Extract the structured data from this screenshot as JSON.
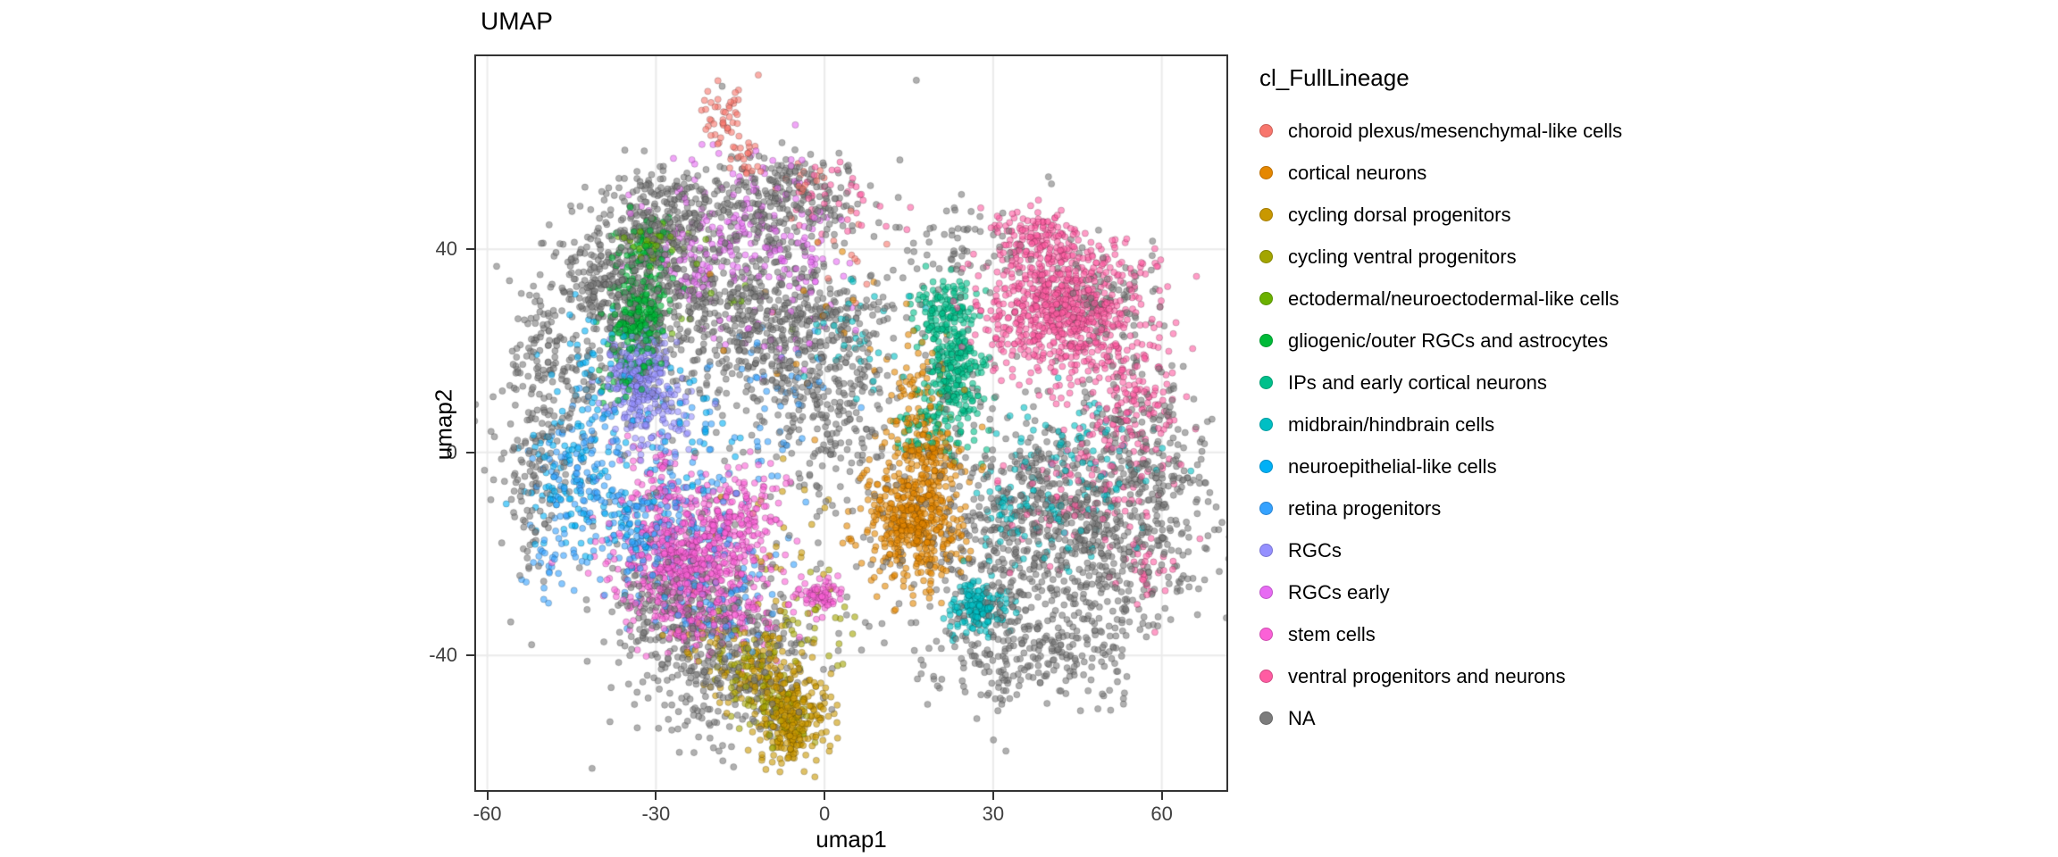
{
  "chart_data": {
    "type": "scatter",
    "title": "UMAP",
    "xlabel": "umap1",
    "ylabel": "umap2",
    "legend_title": "cl_FullLineage",
    "legend_position": "right",
    "xlim": [
      -62,
      71.5
    ],
    "ylim": [
      -66.5,
      78
    ],
    "x_ticks": [
      -60,
      -30,
      0,
      30,
      60
    ],
    "y_ticks": [
      40,
      0,
      -40
    ],
    "grid": "major",
    "grid_color": "#ebebeb",
    "point_radius": 3.6,
    "point_alpha": 0.6,
    "series": [
      {
        "name": "choroid plexus/mesenchymal-like cells",
        "color": "#F8766D",
        "clusters": [
          [
            -17.5,
            66,
            2.2,
            3.2,
            45
          ],
          [
            -14,
            58,
            2,
            2.2,
            22
          ],
          [
            -3,
            53,
            3,
            2.5,
            14
          ],
          [
            6,
            40,
            4,
            5,
            10
          ]
        ]
      },
      {
        "name": "cortical neurons",
        "color": "#E58700",
        "clusters": [
          [
            16,
            -13,
            4.2,
            6.5,
            520
          ],
          [
            18,
            1,
            3,
            3.5,
            110
          ],
          [
            17,
            13,
            3.5,
            5,
            55
          ],
          [
            0,
            25,
            10,
            10,
            20
          ]
        ]
      },
      {
        "name": "cycling dorsal progenitors",
        "color": "#C99800",
        "clusters": [
          [
            -5.5,
            -53,
            3,
            4,
            250
          ],
          [
            -11,
            -45,
            4,
            3.5,
            110
          ],
          [
            -16,
            -38,
            5,
            4,
            55
          ],
          [
            -8,
            -20,
            6,
            10,
            25
          ]
        ]
      },
      {
        "name": "cycling ventral progenitors",
        "color": "#A3A500",
        "clusters": [
          [
            -13,
            -43,
            4,
            4.5,
            85
          ],
          [
            -8,
            -51,
            3,
            3,
            55
          ],
          [
            -2,
            -33,
            5,
            5,
            30
          ]
        ]
      },
      {
        "name": "ectodermal/neuroectodermal-like cells",
        "color": "#6BB100",
        "clusters": [
          [
            -30,
            41,
            2.5,
            2.5,
            35
          ],
          [
            -22,
            32,
            6,
            5,
            18
          ]
        ]
      },
      {
        "name": "gliogenic/outer RGCs and astrocytes",
        "color": "#00BA38",
        "clusters": [
          [
            -33,
            27,
            2.4,
            4.5,
            230
          ],
          [
            -31.5,
            40,
            2.2,
            3,
            70
          ],
          [
            -35,
            16,
            3,
            3.5,
            45
          ]
        ]
      },
      {
        "name": "IPs and early cortical neurons",
        "color": "#00C08B",
        "clusters": [
          [
            23,
            17,
            2.8,
            7,
            290
          ],
          [
            21,
            29,
            2.6,
            3,
            85
          ],
          [
            18.5,
            5,
            3,
            3,
            55
          ]
        ]
      },
      {
        "name": "midbrain/hindbrain cells",
        "color": "#00BFC4",
        "clusters": [
          [
            27,
            -30.5,
            2.4,
            2.8,
            160
          ],
          [
            44,
            -4,
            8,
            7,
            110
          ],
          [
            34,
            -14,
            4,
            4,
            45
          ],
          [
            7,
            23,
            4,
            5,
            35
          ]
        ]
      },
      {
        "name": "neuroepithelial-like cells",
        "color": "#00B0F6",
        "clusters": [
          [
            -46,
            -4,
            4,
            7,
            80
          ],
          [
            -36,
            -14,
            5,
            5,
            55
          ],
          [
            -42,
            16,
            4,
            7,
            45
          ],
          [
            -25,
            5,
            6,
            8,
            40
          ]
        ]
      },
      {
        "name": "retina progenitors",
        "color": "#35A2FF",
        "clusters": [
          [
            -30,
            -14,
            7,
            7,
            190
          ],
          [
            -43,
            -3,
            4.5,
            6,
            95
          ],
          [
            -20,
            -30,
            6,
            4.5,
            75
          ],
          [
            -12,
            6,
            7,
            9,
            60
          ],
          [
            -48,
            -20,
            3,
            4,
            30
          ]
        ]
      },
      {
        "name": "RGCs",
        "color": "#9590FF",
        "clusters": [
          [
            -33,
            15.5,
            2.8,
            4.5,
            270
          ],
          [
            -30,
            7,
            4,
            3.5,
            85
          ]
        ]
      },
      {
        "name": "RGCs early",
        "color": "#E76BF3",
        "clusters": [
          [
            -15,
            45,
            6,
            6.5,
            125
          ],
          [
            -24,
            36,
            5,
            4.5,
            55
          ],
          [
            -4,
            39,
            4,
            4.5,
            45
          ],
          [
            -10,
            25,
            8,
            6,
            30
          ]
        ]
      },
      {
        "name": "stem cells",
        "color": "#FB61D7",
        "clusters": [
          [
            -24,
            -22,
            6.2,
            6.2,
            640
          ],
          [
            -15,
            -12,
            4,
            4,
            140
          ],
          [
            -1,
            -28,
            2.3,
            2,
            75
          ],
          [
            -30,
            -7,
            4,
            4.5,
            80
          ],
          [
            -18,
            -34,
            5,
            3,
            90
          ]
        ]
      },
      {
        "name": "ventral progenitors and neurons",
        "color": "#FF5CA2",
        "clusters": [
          [
            42,
            28,
            7.5,
            6.5,
            760
          ],
          [
            38,
            42,
            5,
            3,
            140
          ],
          [
            56,
            9,
            4,
            7,
            140
          ],
          [
            46,
            -6,
            7,
            6,
            90
          ],
          [
            1,
            49,
            5,
            4,
            35
          ],
          [
            58,
            -20,
            3,
            5,
            40
          ]
        ]
      },
      {
        "name": "NA",
        "color": "#7C7C7C",
        "clusters": [
          [
            -30,
            45,
            6,
            5.5,
            300
          ],
          [
            -8,
            50,
            7,
            4.5,
            270
          ],
          [
            -22,
            28,
            11,
            8,
            520
          ],
          [
            -5,
            24,
            8,
            8,
            300
          ],
          [
            2,
            10,
            6,
            9,
            200
          ],
          [
            -52,
            0,
            3.5,
            12,
            150
          ],
          [
            -47,
            18,
            4.5,
            8,
            130
          ],
          [
            -18,
            -41,
            8,
            8,
            330
          ],
          [
            -28,
            -30,
            6,
            5,
            150
          ],
          [
            42,
            -15,
            12,
            11,
            880
          ],
          [
            37,
            -39,
            9,
            5.5,
            260
          ],
          [
            58,
            -2,
            5,
            9,
            170
          ],
          [
            50,
            30,
            5,
            5,
            90
          ],
          [
            0,
            0,
            30,
            28,
            200
          ],
          [
            25,
            40,
            6,
            5,
            70
          ],
          [
            -40,
            34,
            5,
            5,
            150
          ]
        ]
      }
    ]
  }
}
